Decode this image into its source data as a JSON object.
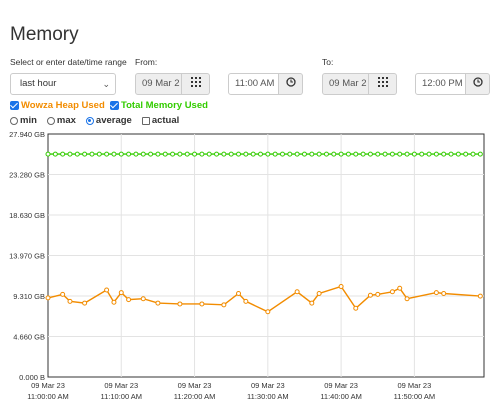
{
  "page": {
    "title": "Memory"
  },
  "range": {
    "label": "Select or enter date/time range",
    "selected": "last hour"
  },
  "from": {
    "label": "From:",
    "date": "09 Mar 2",
    "time": "11:00 AM"
  },
  "to": {
    "label": "To:",
    "date": "09 Mar 2",
    "time": "12:00 PM"
  },
  "icons": {
    "calendar": "calendar-grid-icon",
    "clock": "clock-icon"
  },
  "series_toggles": [
    {
      "label": "Wowza Heap Used",
      "checked": true,
      "color": "#f28c00"
    },
    {
      "label": "Total Memory Used",
      "checked": true,
      "color": "#33cc00"
    }
  ],
  "modes": [
    {
      "label": "min",
      "type": "radio",
      "checked": false
    },
    {
      "label": "max",
      "type": "radio",
      "checked": false
    },
    {
      "label": "average",
      "type": "radio",
      "checked": true
    },
    {
      "label": "actual",
      "type": "checkbox",
      "checked": false
    }
  ],
  "chart_data": {
    "type": "line",
    "y_ticks": [
      "27.940 GB",
      "23.280 GB",
      "18.630 GB",
      "13.970 GB",
      "9.310 GB",
      "4.660 GB",
      "0.000 B"
    ],
    "ylim": [
      0,
      27.94
    ],
    "x_ticks": [
      {
        "date": "09 Mar 23",
        "time": "11:00:00 AM"
      },
      {
        "date": "09 Mar 23",
        "time": "11:10:00 AM"
      },
      {
        "date": "09 Mar 23",
        "time": "11:20:00 AM"
      },
      {
        "date": "09 Mar 23",
        "time": "11:30:00 AM"
      },
      {
        "date": "09 Mar 23",
        "time": "11:40:00 AM"
      },
      {
        "date": "09 Mar 23",
        "time": "11:50:00 AM"
      }
    ],
    "xlim_minutes": [
      0,
      59.5
    ],
    "series": [
      {
        "name": "Total Memory Used",
        "color": "#33cc00",
        "x": [
          0,
          1,
          2,
          3,
          4,
          5,
          6,
          7,
          8,
          9,
          10,
          11,
          12,
          13,
          14,
          15,
          16,
          17,
          18,
          19,
          20,
          21,
          22,
          23,
          24,
          25,
          26,
          27,
          28,
          29,
          30,
          31,
          32,
          33,
          34,
          35,
          36,
          37,
          38,
          39,
          40,
          41,
          42,
          43,
          44,
          45,
          46,
          47,
          48,
          49,
          50,
          51,
          52,
          53,
          54,
          55,
          56,
          57,
          58,
          59
        ],
        "values": [
          25.63,
          25.63,
          25.63,
          25.63,
          25.63,
          25.63,
          25.63,
          25.63,
          25.63,
          25.63,
          25.63,
          25.63,
          25.63,
          25.63,
          25.63,
          25.63,
          25.63,
          25.63,
          25.63,
          25.63,
          25.63,
          25.63,
          25.63,
          25.63,
          25.63,
          25.63,
          25.63,
          25.63,
          25.63,
          25.63,
          25.63,
          25.63,
          25.63,
          25.63,
          25.63,
          25.63,
          25.63,
          25.63,
          25.63,
          25.63,
          25.63,
          25.63,
          25.63,
          25.63,
          25.63,
          25.63,
          25.63,
          25.63,
          25.63,
          25.63,
          25.63,
          25.63,
          25.63,
          25.63,
          25.63,
          25.63,
          25.63,
          25.63,
          25.63,
          25.63
        ]
      },
      {
        "name": "Wowza Heap Used",
        "color": "#f28c00",
        "x": [
          0,
          2,
          3,
          5,
          8,
          9,
          10,
          11,
          13,
          15,
          18,
          21,
          24,
          26,
          27,
          30,
          34,
          36,
          37,
          40,
          42,
          44,
          45,
          47,
          48,
          49,
          53,
          54,
          59
        ],
        "values": [
          9.1,
          9.5,
          8.7,
          8.5,
          10.0,
          8.6,
          9.7,
          8.9,
          9.0,
          8.5,
          8.4,
          8.4,
          8.3,
          9.6,
          8.7,
          7.5,
          9.8,
          8.5,
          9.6,
          10.4,
          7.9,
          9.4,
          9.5,
          9.8,
          10.2,
          9.0,
          9.7,
          9.6,
          9.3
        ]
      }
    ]
  }
}
